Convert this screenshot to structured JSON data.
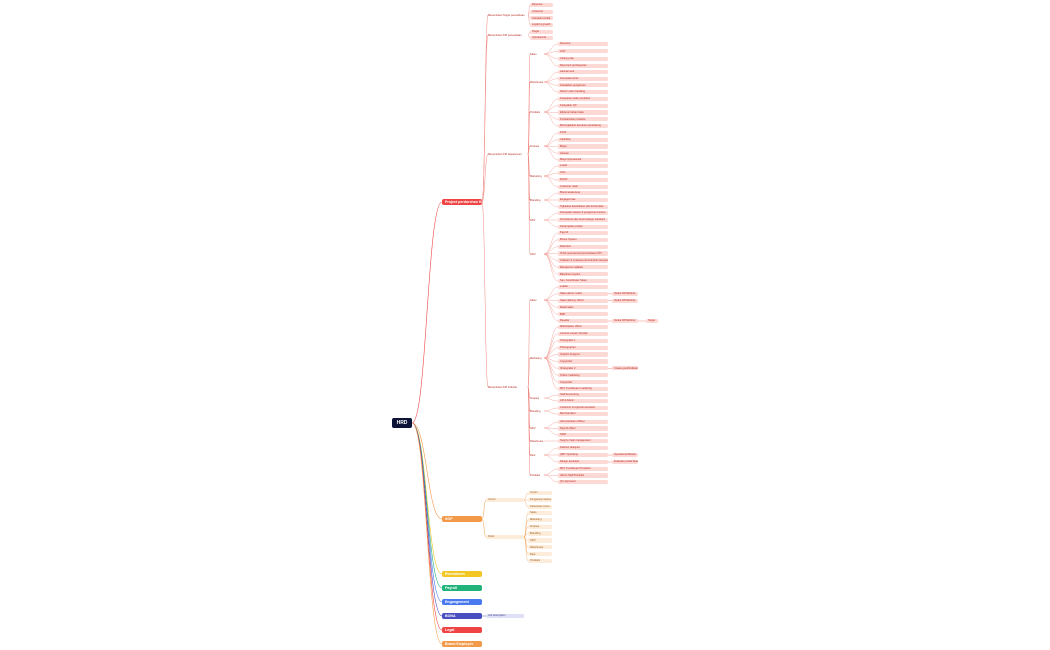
{
  "root": {
    "label": "HRD"
  },
  "colors": {
    "root": "#0b1437",
    "red": "#ef4444",
    "redLine": "#f0857c",
    "redFill": "#fdd9d6",
    "redText": "#b62b22",
    "orange": "#f29a4a",
    "orangeFill": "#fdecd9",
    "orangeText": "#9a5a1a",
    "yellow": "#f2c624",
    "green": "#22b37a",
    "blue": "#4a79ef",
    "indigo": "#4a4fbf",
    "indigoFill": "#dfe0f6",
    "redLogo": "#ef4444",
    "orangeBrand": "#f29a4a"
  },
  "branches": [
    {
      "label": "Project perdurchan KPI",
      "color": "red"
    },
    {
      "label": "SOP",
      "color": "orange"
    },
    {
      "label": "Recruitmen",
      "color": "yellow"
    },
    {
      "label": "Payroll",
      "color": "green"
    },
    {
      "label": "Engangement",
      "color": "blue"
    },
    {
      "label": "BONA",
      "color": "indigo"
    },
    {
      "label": "Legal",
      "color": "red"
    },
    {
      "label": "Brand Employee",
      "color": "orange"
    }
  ],
  "kpi": {
    "groups": [
      {
        "label": "Menentukan Target perusahaan",
        "items": [
          "Revenue",
          "Customer",
          "Interaksi kontak",
          "Loyalti & growth"
        ]
      },
      {
        "label": "Menentukan KPI perusahaan",
        "items": [
          "Target",
          "Operasional"
        ]
      },
      {
        "label": "Menentukan KPI departemen",
        "subgroups": [
          {
            "label": "Sales",
            "items": [
              "Revenue",
              "AOV",
              "Closing rate",
              "Recurrent pembayaran"
            ]
          },
          {
            "label": "Warehouse",
            "items": [
              "Akurasi stok",
              "Kecepatan kirim",
              "Kesalahan pengiriman",
              "Return order handling"
            ]
          },
          {
            "label": "Produksi",
            "items": [
              "Ketepatan waktu produksi",
              "Kelayakan QC",
              "Efisiensi bahan baku",
              "Produktivitas produksi",
              "Meningkatkan kemasan pendukung"
            ]
          },
          {
            "label": "Finance",
            "items": [
              "Profit",
              "Cashflow",
              "Biaya",
              "Akurasi",
              "Biaya Operasional"
            ]
          },
          {
            "label": "Marketing",
            "items": [
              "Leads",
              "CAC",
              "ROAS",
              "Customer retail"
            ]
          },
          {
            "label": "Branding",
            "items": [
              "Brand awareness",
              "Engaged rate",
              "Tigkatkan keterlibatan dan kontinuitas"
            ]
          },
          {
            "label": "ADV",
            "items": [
              "Kecepatan desain & pengiriman konten",
              "Konsistensi dan brand design standard",
              "Ketrampilan produk"
            ]
          },
          {
            "label": "GDV",
            "items": [
              "Payroll",
              "Bonus System",
              "Retention",
              "Tertib operasional (perusahaan) KPI",
              "Indikator & evaluasi pertumbuhan karyawan",
              "Manajemen aplikasi",
              "Baseline program",
              "Sen. Koordinator Sales"
            ]
          }
        ]
      },
      {
        "label": "Menentukan KPI Individu",
        "subgroups": [
          {
            "label": "Sales",
            "items": [
              "Leader",
              "Sales admin / kasir",
              "Sales delivery officer",
              "Retail sales",
              "B2B",
              "Reseller"
            ],
            "extras": [
              [
                "Varies KPI/Definisi",
                1
              ],
              [
                "Varies KPI/Definisi",
                2
              ],
              [
                "Varies KPI/Definisi",
                5
              ]
            ],
            "extra2": [
              "Target",
              5
            ]
          },
          {
            "label": "Marketing",
            "items": [
              "Marketplace officer",
              "Content creator (Sosial)",
              "Videografer 1",
              "Photographer",
              "Graphic designer",
              "Copywriter",
              "Videografer 2",
              "Online marketing",
              "Copywriter",
              "MKT Coordinator marketing"
            ],
            "extras": [
              [
                "Create good/indikatof",
                6
              ]
            ]
          },
          {
            "label": "Finance",
            "items": [
              "Staff Accounting",
              "AR & Admin"
            ]
          },
          {
            "label": "Branding",
            "items": [
              "Customer & regional operation",
              "Merchandiser"
            ]
          },
          {
            "label": "GDV",
            "items": [
              "Administration Officer",
              "Payroll officer",
              "SDM"
            ]
          },
          {
            "label": "Warehouse",
            "items": [
              "Supply chain management"
            ]
          },
          {
            "label": "Rest",
            "items": [
              "Fashion designer",
              "QMT Operating",
              "Design assistant"
            ],
            "extras": [
              [
                "Operational Master",
                1
              ],
              [
                "Evaluasi produk Master",
                2
              ]
            ]
          },
          {
            "label": "Produksi",
            "items": [
              "MKT Coordinator Produksi",
              "Admin Staff Produksi",
              "QC Approved"
            ]
          }
        ]
      }
    ]
  },
  "sop": {
    "groups": [
      {
        "label": "Umum",
        "items": [
          "Umum",
          "Pengaturan status",
          "Ketentuan umum"
        ]
      },
      {
        "label": "Divisi",
        "items": [
          "Sales",
          "Marketing",
          "Finance",
          "Branding",
          "GDV",
          "Warehouse",
          "Rest",
          "Produksi"
        ]
      }
    ]
  },
  "bona": {
    "child": "Job description"
  }
}
